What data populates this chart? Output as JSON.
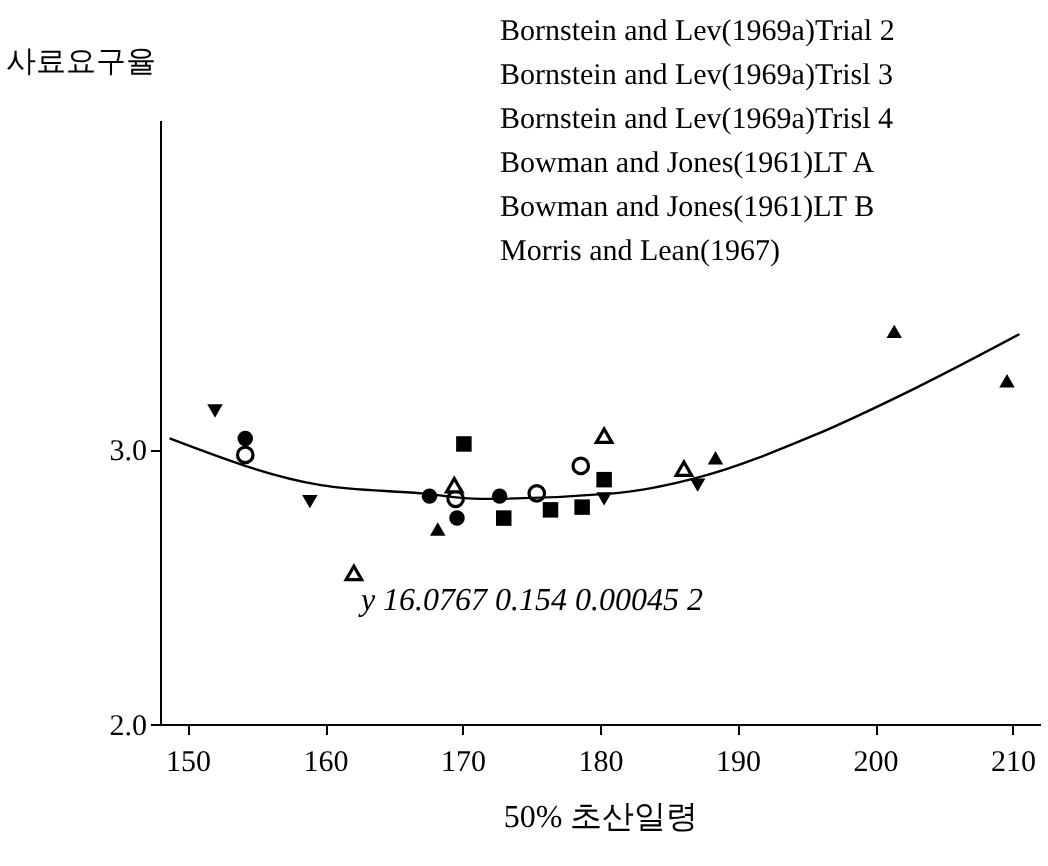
{
  "chart_data": {
    "type": "scatter",
    "xlabel": "50% 초산일령",
    "ylabel": "사료요구율",
    "xlim": [
      148,
      212
    ],
    "ylim": [
      2.0,
      4.2
    ],
    "xticks": [
      150,
      160,
      170,
      180,
      190,
      200,
      210
    ],
    "yticks": [
      {
        "value": 2,
        "label": "2.0"
      },
      {
        "value": 3,
        "label": "3.0"
      }
    ],
    "grid": false,
    "annotations": [
      "Bornstein and Lev(1969a)Trial 2",
      "Bornstein and Lev(1969a)Trisl 3",
      "Bornstein and Lev(1969a)Trisl 4",
      "Bowman and Jones(1961)LT A",
      "Bowman and Jones(1961)LT B",
      "Morris and Lean(1967)",
      "y 16.0767  0.154  0.00045  2"
    ],
    "series": [
      {
        "color": "#000000",
        "marker": "circle",
        "x": [
          154.2,
          167.6,
          169.6,
          172.7
        ],
        "values": [
          3.04,
          2.83,
          2.75,
          2.83
        ]
      },
      {
        "color": "#000000",
        "marker": "circle-open",
        "x": [
          154.2,
          169.5,
          175.4,
          178.6
        ],
        "values": [
          2.98,
          2.82,
          2.84,
          2.94
        ]
      },
      {
        "color": "#000000",
        "marker": "square",
        "x": [
          170.1,
          173.0,
          176.4,
          178.7,
          180.3
        ],
        "values": [
          3.02,
          2.75,
          2.78,
          2.79,
          2.89
        ]
      },
      {
        "color": "#000000",
        "marker": "triangle",
        "x": [
          168.2,
          188.4,
          201.4,
          209.6
        ],
        "values": [
          2.71,
          2.97,
          3.43,
          3.25
        ]
      },
      {
        "color": "#000000",
        "marker": "triangle-open",
        "x": [
          162.1,
          169.4,
          180.3,
          186.1
        ],
        "values": [
          2.55,
          2.87,
          3.05,
          2.93
        ]
      },
      {
        "color": "#000000",
        "marker": "triangle-down",
        "x": [
          152.0,
          158.9,
          180.3,
          187.1
        ],
        "values": [
          3.14,
          2.81,
          2.82,
          2.87
        ]
      },
      {
        "type": "line",
        "color": "#000000",
        "marker": "none",
        "line_style": "solid",
        "x": [
          148.7,
          159.7,
          167.0,
          171.3,
          181.0,
          187.3,
          195.5,
          202.8,
          210.5
        ],
        "values": [
          3.04,
          2.87,
          2.84,
          2.82,
          2.84,
          2.9,
          3.05,
          3.22,
          3.42
        ]
      }
    ]
  }
}
